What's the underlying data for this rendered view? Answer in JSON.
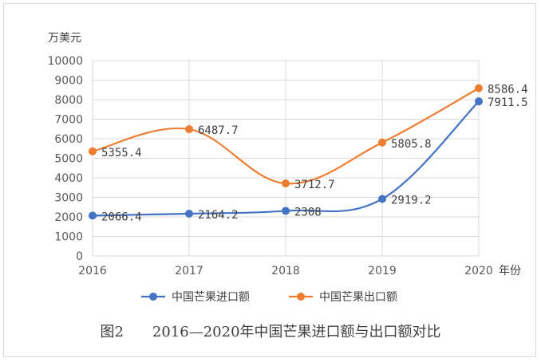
{
  "caption": "图2　　2016—2020年中国芒果进口额与出口额对比",
  "chart_data": {
    "type": "line",
    "ylabel": "万美元",
    "xlabel": "年份",
    "x": [
      "2016",
      "2017",
      "2018",
      "2019",
      "2020"
    ],
    "ylim": [
      0,
      10000
    ],
    "yticks": [
      "0",
      "1000",
      "2000",
      "3000",
      "4000",
      "5000",
      "6000",
      "7000",
      "8000",
      "9000",
      "10000"
    ],
    "grid": true,
    "legend_position": "bottom",
    "series": [
      {
        "name": "中国芒果进口额",
        "color": "#4472c4",
        "values": [
          2066.4,
          2164.2,
          2308,
          2919.2,
          7911.5
        ],
        "labels": [
          "2066.4",
          "2164.2",
          "2308",
          "2919.2",
          "7911.5"
        ]
      },
      {
        "name": "中国芒果出口额",
        "color": "#ed7d31",
        "values": [
          5355.4,
          6487.7,
          3712.7,
          5805.8,
          8586.4
        ],
        "labels": [
          "5355.4",
          "6487.7",
          "3712.7",
          "5805.8",
          "8586.4"
        ]
      }
    ]
  }
}
